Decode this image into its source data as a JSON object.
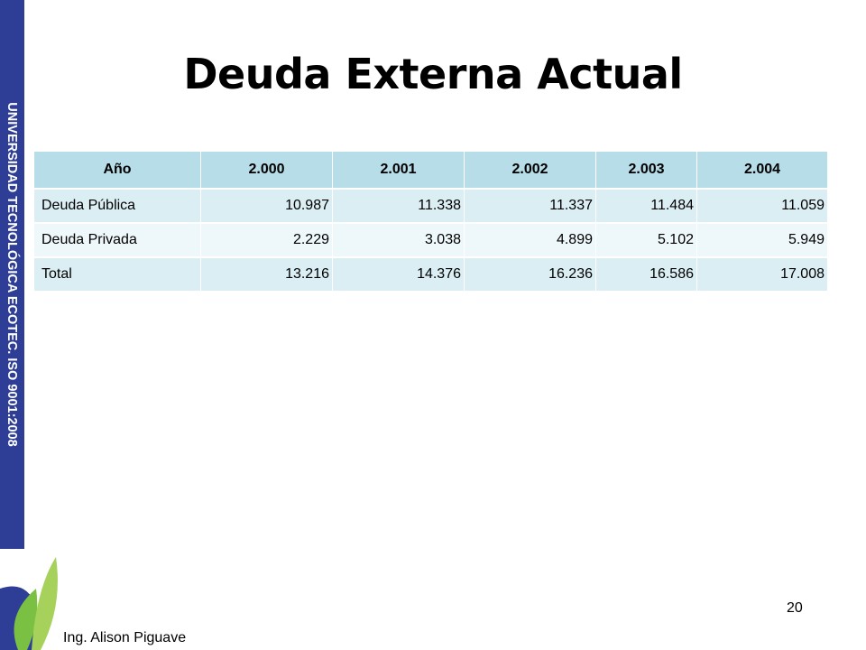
{
  "sidebar": {
    "text": "UNIVERSIDAD TECNOLÓGICA ECOTEC. ISO 9001:2008"
  },
  "title": "Deuda Externa Actual",
  "table": {
    "header": [
      "Año",
      "2.000",
      "2.001",
      "2.002",
      "2.003",
      "2.004"
    ],
    "rows": [
      [
        "Deuda Pública",
        "10.987",
        "11.338",
        "11.337",
        "11.484",
        "11.059"
      ],
      [
        "Deuda Privada",
        "2.229",
        "3.038",
        "4.899",
        "5.102",
        "5.949"
      ],
      [
        "Total",
        "13.216",
        "14.376",
        "16.236",
        "16.586",
        "17.008"
      ]
    ]
  },
  "footer": {
    "author": "Ing. Alison Piguave",
    "page": "20"
  }
}
